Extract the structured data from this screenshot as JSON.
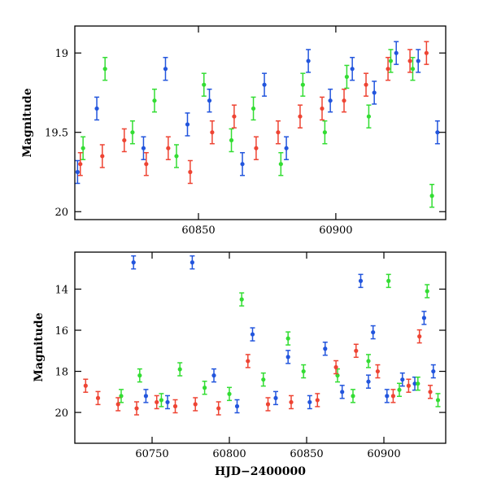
{
  "chart_data": [
    {
      "type": "scatter",
      "title": "",
      "xlabel": "",
      "ylabel": "Magnitude",
      "xlim": [
        60805,
        60940
      ],
      "ylim": [
        20.05,
        18.83
      ],
      "y_inverted": true,
      "grid": false,
      "xticks": [
        60850,
        60900
      ],
      "xtick_labels": [
        "60850",
        "60900"
      ],
      "yticks": [
        19,
        19.5,
        20
      ],
      "ytick_labels": [
        "19",
        "19.5",
        "20"
      ],
      "series": [
        {
          "color": "#2255dd",
          "x": [
            60806,
            60813,
            60830,
            60838,
            60846,
            60854,
            60866,
            60874,
            60882,
            60890,
            60898,
            60906,
            60914,
            60922,
            60930,
            60937
          ],
          "y": [
            19.75,
            19.35,
            19.6,
            19.1,
            19.45,
            19.3,
            19.7,
            19.2,
            19.6,
            19.05,
            19.3,
            19.1,
            19.25,
            19.0,
            19.05,
            19.5
          ]
        },
        {
          "color": "#33dd33",
          "x": [
            60808,
            60816,
            60826,
            60834,
            60842,
            60852,
            60862,
            60870,
            60880,
            60888,
            60896,
            60904,
            60912,
            60920,
            60928,
            60935
          ],
          "y": [
            19.6,
            19.1,
            19.5,
            19.3,
            19.65,
            19.2,
            19.55,
            19.35,
            19.7,
            19.2,
            19.5,
            19.15,
            19.4,
            19.05,
            19.1,
            19.9
          ]
        },
        {
          "color": "#ee4433",
          "x": [
            60807,
            60815,
            60823,
            60831,
            60839,
            60847,
            60855,
            60863,
            60871,
            60879,
            60887,
            60895,
            60903,
            60911,
            60919,
            60927,
            60933
          ],
          "y": [
            19.7,
            19.65,
            19.55,
            19.7,
            19.6,
            19.75,
            19.5,
            19.4,
            19.6,
            19.5,
            19.4,
            19.35,
            19.3,
            19.2,
            19.1,
            19.05,
            19.0
          ]
        }
      ]
    },
    {
      "type": "scatter",
      "title": "",
      "xlabel": "HJD−2400000",
      "ylabel": "Magnitude",
      "xlim": [
        60700,
        60940
      ],
      "ylim": [
        21.5,
        12.2
      ],
      "y_inverted": true,
      "grid": false,
      "xticks": [
        60750,
        60800,
        60850,
        60900
      ],
      "xtick_labels": [
        "60750",
        "60800",
        "60850",
        "60900"
      ],
      "yticks": [
        14,
        16,
        18,
        20
      ],
      "ytick_labels": [
        "14",
        "16",
        "18",
        "20"
      ],
      "series": [
        {
          "color": "#2255dd",
          "x": [
            60738,
            60746,
            60760,
            60776,
            60790,
            60805,
            60815,
            60830,
            60838,
            60852,
            60862,
            60873,
            60885,
            60890,
            60893,
            60902,
            60912,
            60920,
            60926,
            60932
          ],
          "y": [
            12.7,
            19.2,
            19.5,
            12.7,
            18.2,
            19.7,
            16.2,
            19.3,
            17.3,
            19.5,
            16.9,
            19.0,
            13.6,
            18.5,
            16.1,
            19.2,
            18.4,
            18.6,
            15.4,
            18.0
          ]
        },
        {
          "color": "#33dd33",
          "x": [
            60730,
            60742,
            60756,
            60768,
            60784,
            60800,
            60808,
            60822,
            60838,
            60848,
            60870,
            60880,
            60890,
            60903,
            60910,
            60922,
            60928,
            60935
          ],
          "y": [
            19.2,
            18.2,
            19.4,
            17.9,
            18.8,
            19.1,
            14.5,
            18.4,
            16.4,
            18.0,
            18.2,
            19.2,
            17.5,
            13.6,
            18.9,
            18.6,
            14.1,
            19.4
          ]
        },
        {
          "color": "#ee4433",
          "x": [
            60707,
            60715,
            60728,
            60740,
            60753,
            60765,
            60778,
            60793,
            60812,
            60825,
            60840,
            60857,
            60869,
            60882,
            60896,
            60906,
            60916,
            60923,
            60930
          ],
          "y": [
            18.7,
            19.3,
            19.6,
            19.8,
            19.5,
            19.7,
            19.6,
            19.8,
            17.5,
            19.6,
            19.5,
            19.4,
            17.8,
            17.0,
            18.0,
            19.2,
            18.7,
            16.3,
            19.0
          ]
        }
      ]
    }
  ]
}
